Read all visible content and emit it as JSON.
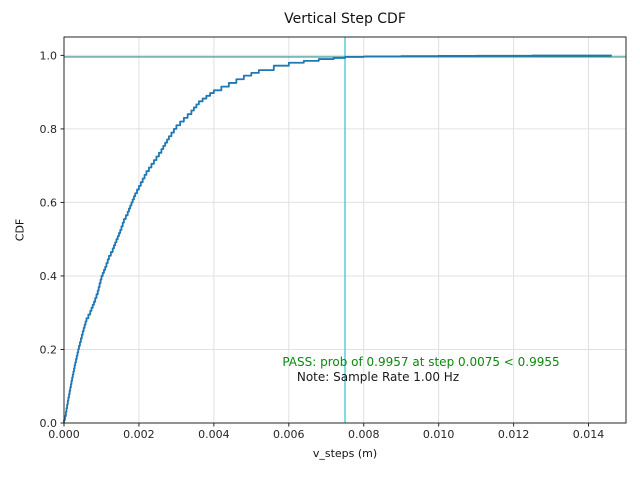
{
  "chart": {
    "title": "Vertical Step CDF",
    "xlabel": "v_steps (m)",
    "ylabel": "CDF",
    "annotations": {
      "pass_text": "PASS: prob of 0.9957 at step 0.0075 < 0.9955",
      "note_text": "Note: Sample Rate 1.00 Hz"
    }
  },
  "chart_data": {
    "type": "line",
    "style": "ecdf-step-curve",
    "title": "Vertical Step CDF",
    "xlabel": "v_steps (m)",
    "ylabel": "CDF",
    "xlim": [
      0.0,
      0.015
    ],
    "ylim": [
      0.0,
      1.05
    ],
    "grid": true,
    "xticks": [
      0.0,
      0.002,
      0.004,
      0.006,
      0.008,
      0.01,
      0.012,
      0.014
    ],
    "xtick_labels": [
      "0.000",
      "0.002",
      "0.004",
      "0.006",
      "0.008",
      "0.010",
      "0.012",
      "0.014"
    ],
    "yticks": [
      0.0,
      0.2,
      0.4,
      0.6,
      0.8,
      1.0
    ],
    "ytick_labels": [
      "0.0",
      "0.2",
      "0.4",
      "0.6",
      "0.8",
      "1.0"
    ],
    "series": [
      {
        "name": "vertical-step-cdf",
        "color": "#1f77b4",
        "points": [
          [
            0.0,
            0.0
          ],
          [
            0.0,
            0.008
          ],
          [
            5e-05,
            0.03
          ],
          [
            0.0001,
            0.06
          ],
          [
            0.0002,
            0.115
          ],
          [
            0.0003,
            0.165
          ],
          [
            0.0004,
            0.21
          ],
          [
            0.0005,
            0.25
          ],
          [
            0.0006,
            0.285
          ],
          [
            0.0007,
            0.305
          ],
          [
            0.0008,
            0.33
          ],
          [
            0.0009,
            0.36
          ],
          [
            0.001,
            0.4
          ],
          [
            0.0011,
            0.425
          ],
          [
            0.0012,
            0.455
          ],
          [
            0.0013,
            0.475
          ],
          [
            0.0014,
            0.5
          ],
          [
            0.0015,
            0.525
          ],
          [
            0.0016,
            0.555
          ],
          [
            0.0017,
            0.575
          ],
          [
            0.0018,
            0.6
          ],
          [
            0.0019,
            0.625
          ],
          [
            0.002,
            0.645
          ],
          [
            0.0022,
            0.685
          ],
          [
            0.0024,
            0.715
          ],
          [
            0.0026,
            0.745
          ],
          [
            0.0028,
            0.78
          ],
          [
            0.003,
            0.81
          ],
          [
            0.0032,
            0.83
          ],
          [
            0.0034,
            0.85
          ],
          [
            0.0036,
            0.875
          ],
          [
            0.0038,
            0.89
          ],
          [
            0.004,
            0.905
          ],
          [
            0.0042,
            0.915
          ],
          [
            0.0044,
            0.925
          ],
          [
            0.0046,
            0.935
          ],
          [
            0.0048,
            0.945
          ],
          [
            0.0052,
            0.96
          ],
          [
            0.0056,
            0.972
          ],
          [
            0.006,
            0.98
          ],
          [
            0.0064,
            0.985
          ],
          [
            0.0068,
            0.99
          ],
          [
            0.0072,
            0.993
          ],
          [
            0.0075,
            0.9957
          ],
          [
            0.008,
            0.997
          ],
          [
            0.009,
            0.998
          ],
          [
            0.01,
            0.9985
          ],
          [
            0.011,
            0.999
          ],
          [
            0.0125,
            0.9995
          ],
          [
            0.0146,
            1.0
          ]
        ]
      }
    ],
    "reference_lines": {
      "hline": {
        "y": 0.9957,
        "color": "#2d8d8d"
      },
      "vline": {
        "x": 0.0075,
        "color": "#2cc4cf"
      }
    },
    "annotations": [
      {
        "text": "PASS: prob of 0.9957 at step 0.0075 < 0.9955",
        "color": "#0a8a0a"
      },
      {
        "text": "Note: Sample Rate 1.00 Hz",
        "color": "#1a1a1a"
      }
    ],
    "colors": {
      "curve": "#1f77b4",
      "grid": "#e0e0e0",
      "spine": "#262626",
      "tick_text": "#262626",
      "pass_text": "#0a8a0a",
      "note_text": "#1a1a1a",
      "background": "#ffffff"
    }
  }
}
